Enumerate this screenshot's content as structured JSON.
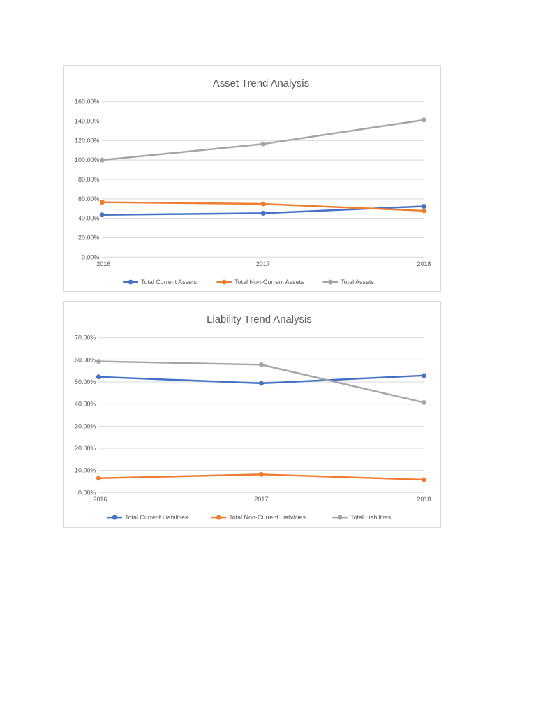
{
  "chart_data": [
    {
      "type": "line",
      "title": "Asset Trend Analysis",
      "categories": [
        "2016",
        "2017",
        "2018"
      ],
      "y_tick_labels": [
        "0.00%",
        "20.00%",
        "40.00%",
        "60.00%",
        "80.00%",
        "100.00%",
        "120.00%",
        "140.00%",
        "160.00%"
      ],
      "ylim": [
        0,
        160
      ],
      "y_step": 20,
      "y_unit": "percent",
      "grid": true,
      "legend_position": "bottom",
      "series": [
        {
          "name": "Total Current Assets",
          "values": [
            43.5,
            45.2,
            52.3
          ],
          "color": "#4472c4"
        },
        {
          "name": "Total Non-Current Assets",
          "values": [
            56.5,
            54.8,
            47.7
          ],
          "color": "#ed7d31"
        },
        {
          "name": "Total Assets",
          "values": [
            100.0,
            116.5,
            141.2
          ],
          "color": "#a5a5a5"
        }
      ]
    },
    {
      "type": "line",
      "title": "Liability Trend Analysis",
      "categories": [
        "2016",
        "2017",
        "2018"
      ],
      "y_tick_labels": [
        "0.00%",
        "10.00%",
        "20.00%",
        "30.00%",
        "40.00%",
        "50.00%",
        "60.00%",
        "70.00%"
      ],
      "ylim": [
        0,
        70
      ],
      "y_step": 10,
      "y_unit": "percent",
      "grid": true,
      "legend_position": "bottom",
      "series": [
        {
          "name": "Total Current Liabilities",
          "values": [
            52.3,
            49.4,
            52.9
          ],
          "color": "#4472c4"
        },
        {
          "name": "Total Non-Current Liabilities",
          "values": [
            6.5,
            8.2,
            5.8
          ],
          "color": "#ed7d31"
        },
        {
          "name": "Total Liabilities",
          "values": [
            59.3,
            57.8,
            40.7
          ],
          "color": "#a5a5a5"
        }
      ]
    }
  ]
}
